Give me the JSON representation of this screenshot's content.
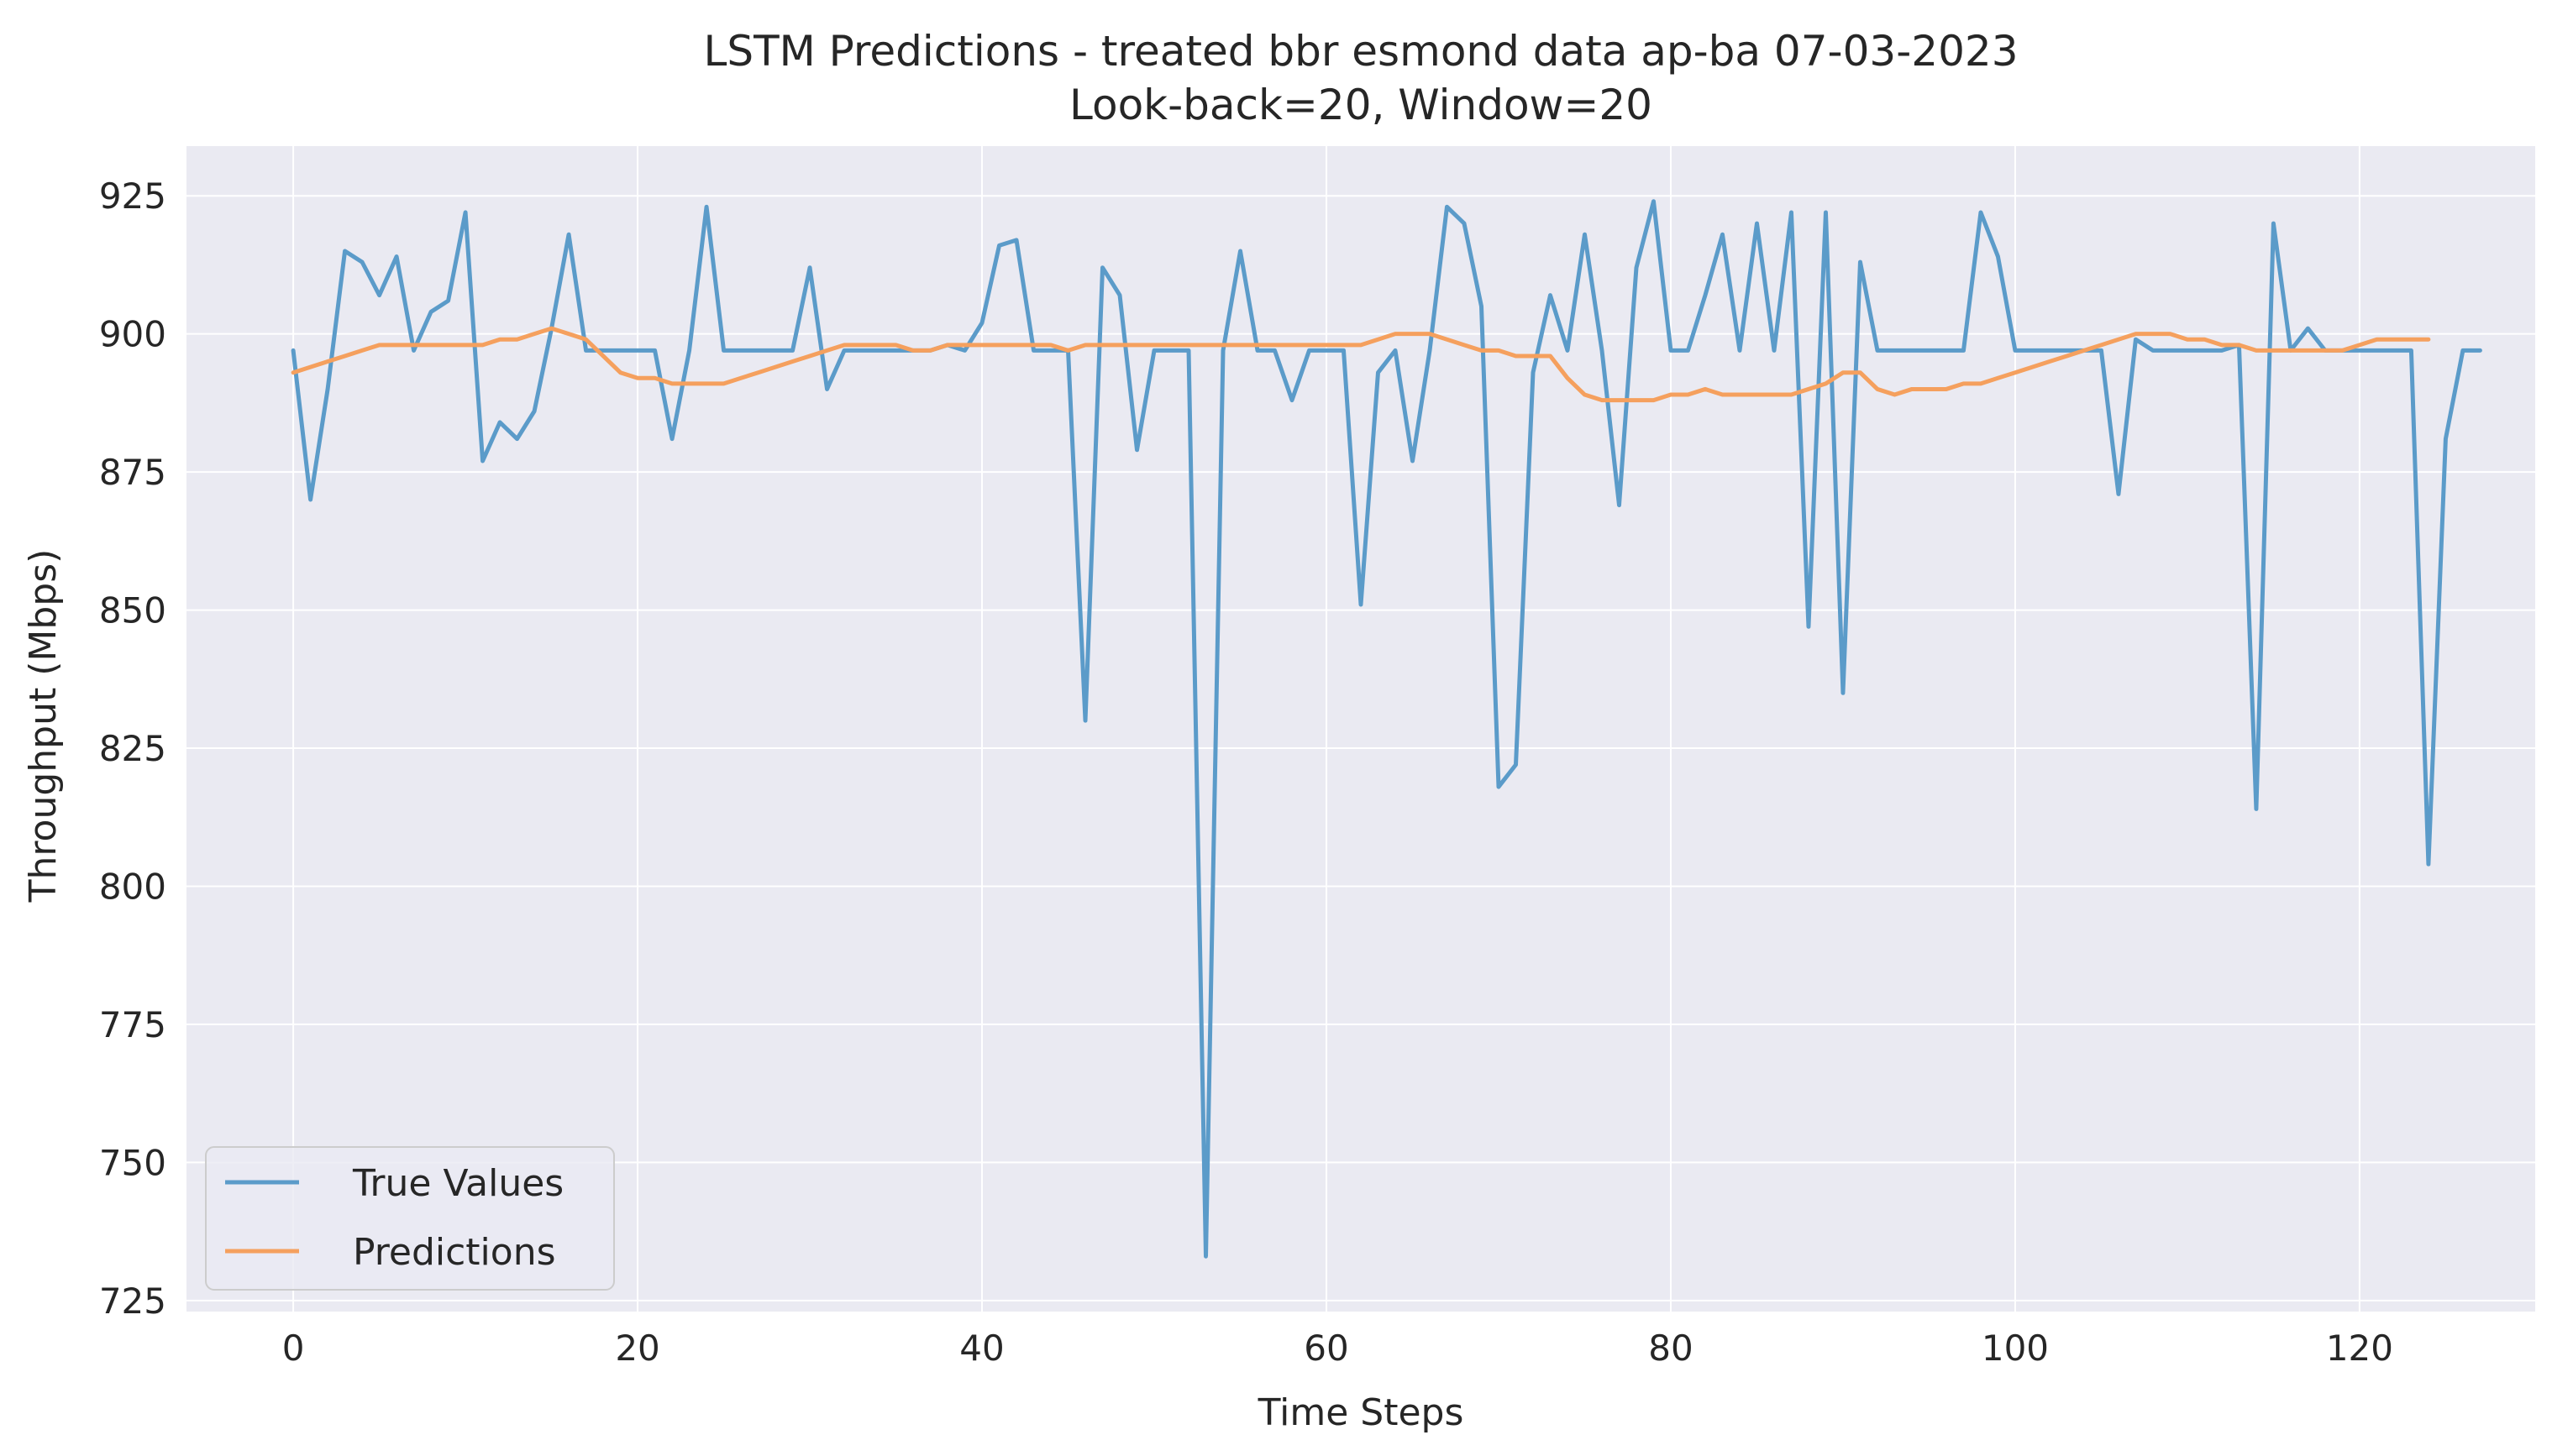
{
  "chart_data": {
    "type": "line",
    "title": "LSTM Predictions - treated bbr esmond data ap-ba 07-03-2023",
    "subtitle": "Look-back=20, Window=20",
    "xlabel": "Time Steps",
    "ylabel": "Throughput (Mbps)",
    "xlim": [
      -6.2,
      130.2
    ],
    "ylim": [
      723,
      934
    ],
    "xticks": [
      0,
      20,
      40,
      60,
      80,
      100,
      120
    ],
    "yticks": [
      725,
      750,
      775,
      800,
      825,
      850,
      875,
      900,
      925
    ],
    "grid": true,
    "legend": "lower-left",
    "colors": {
      "background": "#eaeaf2",
      "grid": "#ffffff",
      "true_values": "#5b9bc9",
      "predictions": "#f5a05e"
    },
    "series": [
      {
        "name": "True Values",
        "values": [
          897,
          870,
          890,
          915,
          913,
          907,
          914,
          897,
          904,
          906,
          922,
          877,
          884,
          881,
          886,
          901,
          918,
          897,
          897,
          897,
          897,
          897,
          881,
          897,
          923,
          897,
          897,
          897,
          897,
          897,
          912,
          890,
          897,
          897,
          897,
          897,
          897,
          897,
          898,
          897,
          902,
          916,
          917,
          897,
          897,
          897,
          830,
          912,
          907,
          879,
          897,
          897,
          897,
          733,
          897,
          915,
          897,
          897,
          888,
          897,
          897,
          897,
          851,
          893,
          897,
          877,
          897,
          923,
          920,
          905,
          818,
          822,
          893,
          907,
          897,
          918,
          897,
          869,
          912,
          924,
          897,
          897,
          907,
          918,
          897,
          920,
          897,
          922,
          847,
          922,
          835,
          913,
          897,
          897,
          897,
          897,
          897,
          897,
          922,
          914,
          897,
          897,
          897,
          897,
          897,
          897,
          871,
          899,
          897,
          897,
          897,
          897,
          897,
          898,
          814,
          920,
          897,
          901,
          897,
          897,
          897,
          897,
          897,
          897,
          804,
          881,
          897,
          897
        ]
      },
      {
        "name": "Predictions",
        "values": [
          893,
          894,
          895,
          896,
          897,
          898,
          898,
          898,
          898,
          898,
          898,
          898,
          899,
          899,
          900,
          901,
          900,
          899,
          896,
          893,
          892,
          892,
          891,
          891,
          891,
          891,
          892,
          893,
          894,
          895,
          896,
          897,
          898,
          898,
          898,
          898,
          897,
          897,
          898,
          898,
          898,
          898,
          898,
          898,
          898,
          897,
          898,
          898,
          898,
          898,
          898,
          898,
          898,
          898,
          898,
          898,
          898,
          898,
          898,
          898,
          898,
          898,
          898,
          899,
          900,
          900,
          900,
          899,
          898,
          897,
          897,
          896,
          896,
          896,
          892,
          889,
          888,
          888,
          888,
          888,
          889,
          889,
          890,
          889,
          889,
          889,
          889,
          889,
          890,
          891,
          893,
          893,
          890,
          889,
          890,
          890,
          890,
          891,
          891,
          892,
          893,
          894,
          895,
          896,
          897,
          898,
          899,
          900,
          900,
          900,
          899,
          899,
          898,
          898,
          897,
          897,
          897,
          897,
          897,
          897,
          898,
          899,
          899,
          899,
          899
        ]
      }
    ]
  }
}
